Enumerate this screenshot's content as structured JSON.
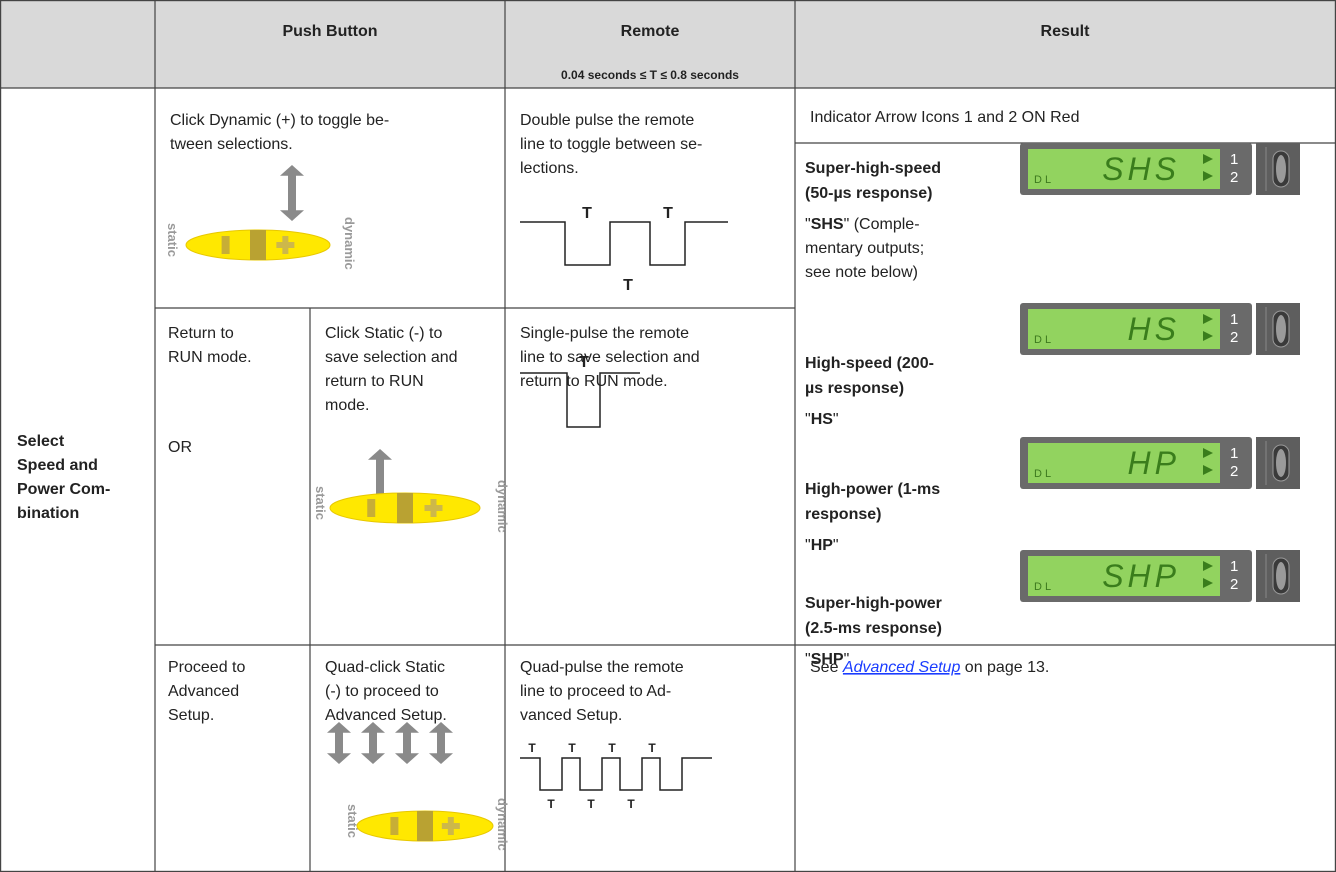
{
  "header": {
    "push_button": "Push Button",
    "remote": "Remote",
    "remote_note": "0.04 seconds ≤ T ≤ 0.8 seconds",
    "result": "Result"
  },
  "row_label": [
    "Select",
    "Speed and",
    "Power Com-",
    "bination"
  ],
  "icons": {
    "static": "static",
    "dynamic": "dynamic",
    "pulse": "T",
    "lcd_mode": "DL",
    "outputs": [
      "1",
      "2"
    ],
    "quote": "\""
  },
  "rows": [
    {
      "push_button": [
        "Click Dynamic (+) to toggle be-",
        "tween selections."
      ],
      "remote": [
        "Double pulse the remote",
        "line to toggle between se-",
        "lections."
      ],
      "result": "Indicator Arrow Icons 1 and 2 ON Red"
    },
    {
      "action": [
        "Return to",
        "RUN mode."
      ],
      "or": "OR",
      "push_button": [
        "Click Static (-) to",
        "save selection and",
        "return to RUN",
        "mode."
      ],
      "remote": [
        "Single-pulse the remote",
        "line to save selection and",
        "return to RUN mode."
      ]
    },
    {
      "action": [
        "Proceed to",
        "Advanced",
        "Setup."
      ],
      "push_button": [
        "Quad-click Static",
        "(-) to proceed to",
        "Advanced Setup."
      ],
      "remote": [
        "Quad-pulse the remote",
        "line to proceed to Ad-",
        "vanced Setup."
      ],
      "result": {
        "before": "See ",
        "link": "Advanced Setup",
        "after": " on page 13."
      }
    }
  ],
  "modes": [
    {
      "name": [
        "Super-high-speed",
        "(50-µs response)"
      ],
      "code": "SHS",
      "note": [
        " (Comple-",
        "mentary outputs;",
        "see note below)"
      ]
    },
    {
      "name": [
        "High-speed (200-",
        "µs response)"
      ],
      "code": "HS"
    },
    {
      "name": [
        "High-power (1-ms",
        "response)"
      ],
      "code": "HP"
    },
    {
      "name": [
        "Super-high-power",
        "(2.5-ms response)"
      ],
      "code": "SHP"
    }
  ]
}
